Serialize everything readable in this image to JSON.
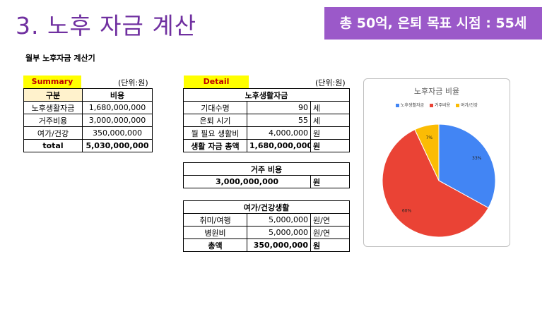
{
  "header": {
    "title": "3. 노후 자금 계산",
    "goal": "총 50억, 은퇴 목표 시점 : 55세"
  },
  "subtitle": "월부 노후자금 계산기",
  "summary": {
    "tag": "Summary",
    "unit": "(단위:원)",
    "columns": [
      "구분",
      "비용"
    ],
    "rows": [
      {
        "label": "노후생활자금",
        "value": "1,680,000,000"
      },
      {
        "label": "거주비용",
        "value": "3,000,000,000"
      },
      {
        "label": "여가/건강",
        "value": "350,000,000"
      },
      {
        "label": "total",
        "value": "5,030,000,000"
      }
    ]
  },
  "detail": {
    "tag": "Detail",
    "unit": "(단위:원)",
    "retirement": {
      "header": "노후생활자금",
      "rows": [
        {
          "label": "기대수명",
          "value": "90",
          "unit": "세"
        },
        {
          "label": "은퇴 시기",
          "value": "55",
          "unit": "세"
        },
        {
          "label": "월 필요 생활비",
          "value": "4,000,000",
          "unit": "원"
        },
        {
          "label": "생활 자금 총액",
          "value": "1,680,000,000",
          "unit": "원"
        }
      ]
    },
    "housing": {
      "header": "거주 비용",
      "value": "3,000,000,000",
      "unit": "원"
    },
    "leisure": {
      "header": "여가/건강생활",
      "rows": [
        {
          "label": "취미/여행",
          "value": "5,000,000",
          "unit": "원/연"
        },
        {
          "label": "병원비",
          "value": "5,000,000",
          "unit": "원/연"
        },
        {
          "label": "총액",
          "value": "350,000,000",
          "unit": "원"
        }
      ]
    }
  },
  "chart_data": {
    "type": "pie",
    "title": "노후자금 비율",
    "legend_position": "top",
    "series": [
      {
        "name": "노후생활자금",
        "value": 33,
        "label": "33%",
        "color": "#4285f4"
      },
      {
        "name": "거주비용",
        "value": 60,
        "label": "60%",
        "color": "#ea4335"
      },
      {
        "name": "여가/건강",
        "value": 7,
        "label": "7%",
        "color": "#fbbc04"
      }
    ]
  }
}
